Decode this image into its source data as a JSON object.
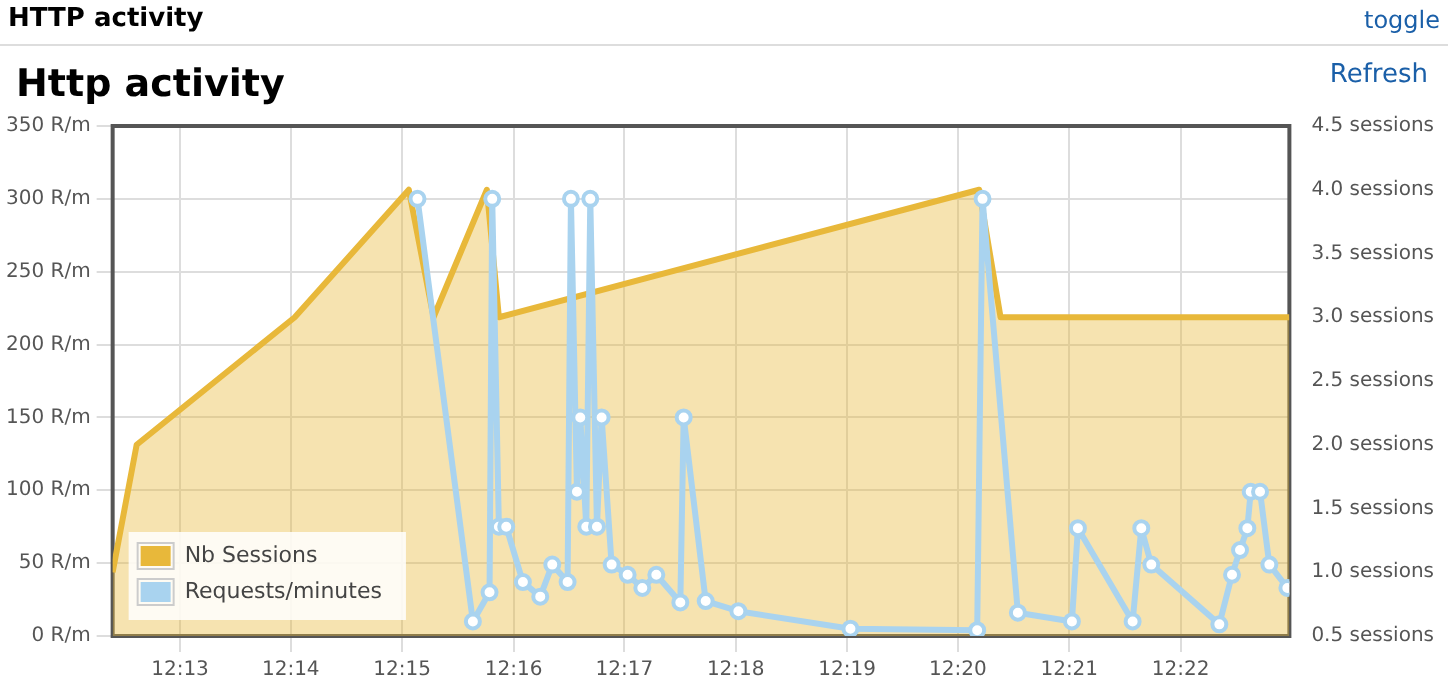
{
  "chart_data": {
    "type": "area",
    "title": "Http activity",
    "annotations": [
      "HTTP activity",
      "toggle",
      "Refresh"
    ],
    "xlim": [
      12.2066,
      12.383
    ],
    "xticks": [
      {
        "value": 12.2167,
        "label": "12:13"
      },
      {
        "value": 12.2333,
        "label": "12:14"
      },
      {
        "value": 12.25,
        "label": "12:15"
      },
      {
        "value": 12.2667,
        "label": "12:16"
      },
      {
        "value": 12.2833,
        "label": "12:17"
      },
      {
        "value": 12.3,
        "label": "12:18"
      },
      {
        "value": 12.3167,
        "label": "12:19"
      },
      {
        "value": 12.3333,
        "label": "12:20"
      },
      {
        "value": 12.35,
        "label": "12:21"
      },
      {
        "value": 12.3667,
        "label": "12:22"
      }
    ],
    "ylim": [
      0,
      350
    ],
    "yticks": [
      {
        "value": 0,
        "label": "0 R/m"
      },
      {
        "value": 50,
        "label": "50 R/m"
      },
      {
        "value": 100,
        "label": "100 R/m"
      },
      {
        "value": 150,
        "label": "150 R/m"
      },
      {
        "value": 200,
        "label": "200 R/m"
      },
      {
        "value": 250,
        "label": "250 R/m"
      },
      {
        "value": 300,
        "label": "300 R/m"
      },
      {
        "value": 350,
        "label": "350 R/m"
      }
    ],
    "y2lim": [
      0.5,
      4.5
    ],
    "y2ticks": [
      {
        "value": 0.5,
        "label": "0.5 sessions"
      },
      {
        "value": 1,
        "label": "1.0 sessions"
      },
      {
        "value": 1.5,
        "label": "1.5 sessions"
      },
      {
        "value": 2,
        "label": "2.0 sessions"
      },
      {
        "value": 2.5,
        "label": "2.5 sessions"
      },
      {
        "value": 3,
        "label": "3.0 sessions"
      },
      {
        "value": 3.5,
        "label": "3.5 sessions"
      },
      {
        "value": 4,
        "label": "4.0 sessions"
      },
      {
        "value": 4.5,
        "label": "4.5 sessions"
      }
    ],
    "grid": true,
    "legend": "bottom left",
    "series": [
      {
        "name": "Nb Sessions",
        "axis": "y2",
        "color": "#e8b83a",
        "x": [
          12.2066,
          12.2102,
          12.2339,
          12.251,
          12.2547,
          12.2627,
          12.2645,
          12.3365,
          12.3397,
          12.383
        ],
        "values": [
          1,
          2,
          3,
          4,
          3,
          4,
          3,
          4,
          3,
          3
        ]
      },
      {
        "name": "Requests/minutes",
        "type": "line",
        "axis": "y",
        "color": "#a9d3ef",
        "marker": "circle",
        "x": [
          12.2523,
          12.2606,
          12.2631,
          12.2635,
          12.2645,
          12.2656,
          12.2681,
          12.2707,
          12.2725,
          12.2748,
          12.2753,
          12.2762,
          12.2767,
          12.2776,
          12.2782,
          12.2792,
          12.2799,
          12.2814,
          12.2838,
          12.286,
          12.2881,
          12.2917,
          12.2922,
          12.2955,
          12.3004,
          12.3172,
          12.3362,
          12.337,
          12.3423,
          12.3504,
          12.3513,
          12.3595,
          12.3608,
          12.3623,
          12.3725,
          12.3744,
          12.3756,
          12.3767,
          12.3772,
          12.3786,
          12.38,
          12.3827
        ],
        "values": [
          300,
          10,
          30,
          300,
          75,
          75,
          37,
          27,
          49,
          37,
          300,
          99,
          150,
          75,
          300,
          75,
          150,
          49,
          42,
          33,
          42,
          23,
          150,
          24,
          17,
          5,
          4,
          300,
          16,
          10,
          74,
          10,
          74,
          49,
          8,
          42,
          59,
          74,
          99,
          99,
          49,
          33
        ]
      }
    ]
  }
}
